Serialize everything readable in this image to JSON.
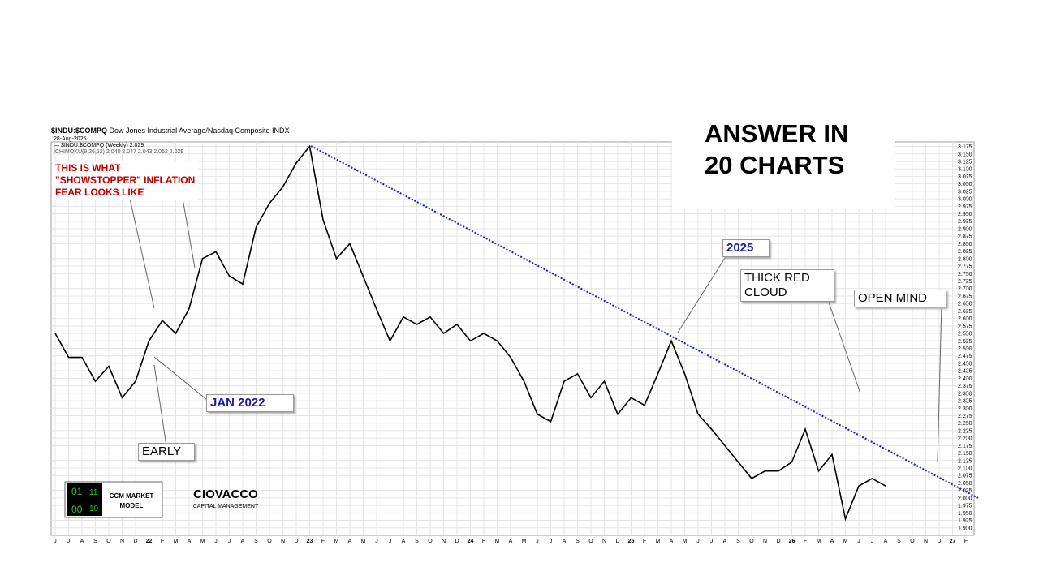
{
  "chart_data": {
    "type": "line",
    "symbol": "$INDU:$COMPQ",
    "title": "Dow Jones Industrial Average/Nasdaq Composite INDX",
    "date": "28-Aug-2025",
    "legend": [
      "— $INDU:$COMPQ (Weekly) 2.029",
      "ICHIMOKU(9,26,52) 2.040 2.047 2.043 2.052 2.029"
    ],
    "categories": [
      "J",
      "J",
      "A",
      "S",
      "O",
      "N",
      "D",
      "22",
      "F",
      "M",
      "A",
      "M",
      "J",
      "J",
      "A",
      "S",
      "O",
      "N",
      "D",
      "23",
      "F",
      "M",
      "A",
      "M",
      "J",
      "J",
      "A",
      "S",
      "O",
      "N",
      "D",
      "24",
      "F",
      "M",
      "A",
      "M",
      "J",
      "J",
      "A",
      "S",
      "O",
      "N",
      "D",
      "25",
      "F",
      "M",
      "A",
      "M",
      "J",
      "J",
      "A",
      "S",
      "O",
      "N",
      "D",
      "26",
      "F",
      "M",
      "A",
      "M",
      "J",
      "J",
      "A",
      "S",
      "O",
      "N",
      "D",
      "27",
      "F"
    ],
    "series": [
      {
        "name": "$INDU:$COMPQ (Weekly)",
        "color": "#000000",
        "values": [
          2.55,
          2.47,
          2.47,
          2.39,
          2.44,
          2.335,
          2.39,
          2.525,
          2.593,
          2.55,
          2.633,
          2.8,
          2.823,
          2.742,
          2.715,
          2.905,
          2.985,
          3.04,
          3.12,
          3.175,
          2.93,
          2.8,
          2.85,
          2.74,
          2.63,
          2.525,
          2.605,
          2.58,
          2.605,
          2.55,
          2.58,
          2.525,
          2.55,
          2.525,
          2.47,
          2.39,
          2.28,
          2.255,
          2.39,
          2.415,
          2.335,
          2.39,
          2.28,
          2.335,
          2.31,
          2.415,
          2.525,
          2.415,
          2.28,
          2.23,
          2.175,
          2.12,
          2.065,
          2.09,
          2.09,
          2.12,
          2.23,
          2.09,
          2.145,
          1.93,
          2.04,
          2.065,
          2.04,
          null,
          null,
          null,
          null,
          null,
          null
        ]
      }
    ],
    "ylim": [
      1.875,
      3.19
    ],
    "yticks": [
      {
        "value": 1.9,
        "label": "1.900"
      },
      {
        "value": 1.925,
        "label": "1.925"
      },
      {
        "value": 1.95,
        "label": "1.950"
      },
      {
        "value": 1.975,
        "label": "1.975"
      },
      {
        "value": 2.0,
        "label": "2.000"
      },
      {
        "value": 2.025,
        "label": "2.025"
      },
      {
        "value": 2.05,
        "label": "2.050"
      },
      {
        "value": 2.075,
        "label": "2.075"
      },
      {
        "value": 2.1,
        "label": "2.100"
      },
      {
        "value": 2.125,
        "label": "2.125"
      },
      {
        "value": 2.15,
        "label": "2.150"
      },
      {
        "value": 2.175,
        "label": "2.175"
      },
      {
        "value": 2.2,
        "label": "2.200"
      },
      {
        "value": 2.225,
        "label": "2.225"
      },
      {
        "value": 2.25,
        "label": "2.250"
      },
      {
        "value": 2.275,
        "label": "2.275"
      },
      {
        "value": 2.3,
        "label": "2.300"
      },
      {
        "value": 2.325,
        "label": "2.325"
      },
      {
        "value": 2.35,
        "label": "2.350"
      },
      {
        "value": 2.375,
        "label": "2.375"
      },
      {
        "value": 2.4,
        "label": "2.400"
      },
      {
        "value": 2.425,
        "label": "2.425"
      },
      {
        "value": 2.45,
        "label": "2.450"
      },
      {
        "value": 2.475,
        "label": "2.475"
      },
      {
        "value": 2.5,
        "label": "2.500"
      },
      {
        "value": 2.525,
        "label": "2.525"
      },
      {
        "value": 2.55,
        "label": "2.550"
      },
      {
        "value": 2.575,
        "label": "2.575"
      },
      {
        "value": 2.6,
        "label": "2.600"
      },
      {
        "value": 2.625,
        "label": "2.625"
      },
      {
        "value": 2.65,
        "label": "2.650"
      },
      {
        "value": 2.675,
        "label": "2.675"
      },
      {
        "value": 2.7,
        "label": "2.700"
      },
      {
        "value": 2.725,
        "label": "2.725"
      },
      {
        "value": 2.75,
        "label": "2.750"
      },
      {
        "value": 2.775,
        "label": "2.775"
      },
      {
        "value": 2.8,
        "label": "2.800"
      },
      {
        "value": 2.825,
        "label": "2.825"
      },
      {
        "value": 2.85,
        "label": "2.850"
      },
      {
        "value": 2.875,
        "label": "2.875"
      },
      {
        "value": 2.9,
        "label": "2.900"
      },
      {
        "value": 2.925,
        "label": "2.925"
      },
      {
        "value": 2.95,
        "label": "2.950"
      },
      {
        "value": 2.975,
        "label": "2.975"
      },
      {
        "value": 3.0,
        "label": "3.000"
      },
      {
        "value": 3.025,
        "label": "3.025"
      },
      {
        "value": 3.05,
        "label": "3.050"
      },
      {
        "value": 3.075,
        "label": "3.075"
      },
      {
        "value": 3.1,
        "label": "3.100"
      },
      {
        "value": 3.125,
        "label": "3.125"
      },
      {
        "value": 3.15,
        "label": "3.150"
      },
      {
        "value": 3.175,
        "label": "3.175"
      }
    ],
    "grid": true,
    "annotations": {
      "inflation": [
        "THIS IS WHAT",
        "\"SHOWSTOPPER\" INFLATION",
        "FEAR LOOKS LIKE"
      ],
      "jan2022": "JAN 2022",
      "early": "EARLY",
      "y2025": "2025",
      "cloud": [
        "THICK RED",
        "CLOUD"
      ],
      "open_mind": "OPEN MIND"
    },
    "headline": [
      "ANSWER IN",
      "20 CHARTS"
    ],
    "logo": {
      "digits": [
        "01",
        "11",
        "00",
        "10"
      ],
      "model": [
        "CCM MARKET",
        "MODEL"
      ],
      "brand": "CIOVACCO",
      "sub": "CAPITAL MANAGEMENT"
    }
  }
}
